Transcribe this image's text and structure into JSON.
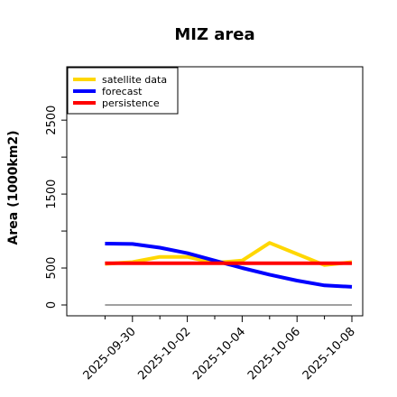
{
  "chart_data": {
    "type": "line",
    "title": "MIZ area",
    "xlabel": "",
    "ylabel": "Area (1000km2)",
    "x": [
      "2025-09-29",
      "2025-09-30",
      "2025-10-01",
      "2025-10-02",
      "2025-10-03",
      "2025-10-04",
      "2025-10-05",
      "2025-10-06",
      "2025-10-07",
      "2025-10-08"
    ],
    "xticks": [
      {
        "date": "2025-09-30",
        "label": "2025-09-30",
        "color": "#228B22"
      },
      {
        "date": "2025-10-02",
        "label": "2025-10-02",
        "color": "#000000"
      },
      {
        "date": "2025-10-04",
        "label": "2025-10-04",
        "color": "#000000"
      },
      {
        "date": "2025-10-06",
        "label": "2025-10-06",
        "color": "#000000"
      },
      {
        "date": "2025-10-08",
        "label": "2025-10-08",
        "color": "#000000"
      }
    ],
    "xlim": [
      "2025-09-28",
      "2025-10-08"
    ],
    "yticks": [
      0,
      500,
      1500,
      2500
    ],
    "ylim": [
      0,
      3100
    ],
    "grid": false,
    "legend_position": "top-left",
    "reference_line": {
      "y": 0,
      "color": "#808080"
    },
    "series": [
      {
        "name": "satellite data",
        "color": "#FFD700",
        "x": [
          "2025-09-29",
          "2025-09-30",
          "2025-10-01",
          "2025-10-02",
          "2025-10-03",
          "2025-10-04",
          "2025-10-05",
          "2025-10-06",
          "2025-10-07",
          "2025-10-08"
        ],
        "values": [
          555,
          580,
          650,
          650,
          570,
          600,
          840,
          690,
          540,
          580
        ]
      },
      {
        "name": "forecast",
        "color": "#0000FF",
        "x": [
          "2025-09-29",
          "2025-09-30",
          "2025-10-01",
          "2025-10-02",
          "2025-10-03",
          "2025-10-04",
          "2025-10-05",
          "2025-10-06",
          "2025-10-07",
          "2025-10-08"
        ],
        "values": [
          830,
          825,
          775,
          700,
          600,
          500,
          410,
          330,
          265,
          245
        ]
      },
      {
        "name": "persistence",
        "color": "#FF0000",
        "x": [
          "2025-09-29",
          "2025-09-30",
          "2025-10-01",
          "2025-10-02",
          "2025-10-03",
          "2025-10-04",
          "2025-10-05",
          "2025-10-06",
          "2025-10-07",
          "2025-10-08"
        ],
        "values": [
          565,
          565,
          565,
          565,
          565,
          565,
          565,
          565,
          565,
          565
        ]
      }
    ]
  }
}
